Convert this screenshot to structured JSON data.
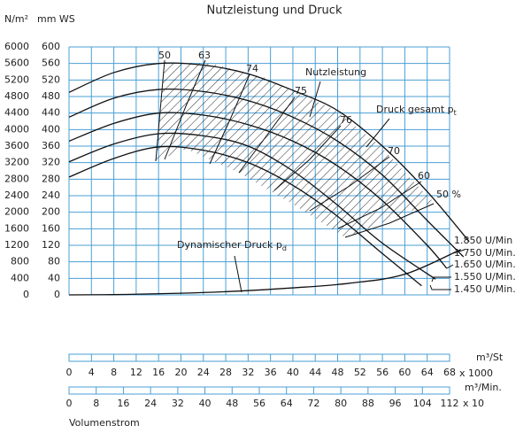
{
  "chart_data": {
    "type": "line",
    "title": "Nutzleistung und Druck",
    "y2_label": "N/m²",
    "y_label": "mm WS",
    "x_label": "Volumenstrom",
    "x_unit": "m³/St",
    "x_multiplier": "x 1000",
    "x2_unit": "m³/Min.",
    "x2_multiplier": "x 10",
    "annotations": {
      "power": "Nutzleistung",
      "total_pressure": "Druck gesamt p",
      "total_pressure_sub": "t"
    },
    "efficiency_labels": [
      "50",
      "63",
      "74",
      "75",
      "76",
      "70",
      "60",
      "50 %"
    ],
    "xlim": [
      0,
      68
    ],
    "xticks": [
      0,
      4,
      8,
      12,
      16,
      20,
      24,
      28,
      32,
      36,
      40,
      44,
      48,
      52,
      56,
      60,
      64,
      68
    ],
    "x2lim": [
      0,
      112
    ],
    "x2ticks": [
      0,
      8,
      16,
      24,
      32,
      40,
      48,
      56,
      64,
      72,
      80,
      88,
      96,
      104,
      112
    ],
    "ylim": [
      0,
      600
    ],
    "yticks": [
      0,
      40,
      80,
      120,
      160,
      200,
      240,
      280,
      320,
      360,
      400,
      440,
      480,
      520,
      560,
      600
    ],
    "y2lim": [
      0,
      6000
    ],
    "y2ticks": [
      0,
      400,
      800,
      1200,
      1600,
      2000,
      2400,
      2800,
      3200,
      3600,
      4000,
      4400,
      4800,
      5200,
      5600,
      6000
    ],
    "grid": true,
    "series": [
      {
        "name": "1.850 U/Min",
        "color": "#111111",
        "x": [
          0,
          8,
          16,
          24,
          32,
          40,
          48,
          56,
          64,
          71.5
        ],
        "values": [
          490,
          538,
          560,
          556,
          535,
          495,
          446,
          360,
          250,
          129
        ]
      },
      {
        "name": "1.750 U/Min.",
        "color": "#111111",
        "x": [
          0,
          8,
          16,
          24,
          32,
          40,
          48,
          56,
          64,
          70.5
        ],
        "values": [
          430,
          476,
          497,
          492,
          470,
          430,
          372,
          290,
          180,
          92
        ]
      },
      {
        "name": "1.650 U/Min.",
        "color": "#111111",
        "x": [
          0,
          8,
          16,
          24,
          32,
          40,
          48,
          56,
          64,
          67.5
        ],
        "values": [
          372,
          415,
          440,
          435,
          412,
          372,
          312,
          228,
          120,
          64
        ]
      },
      {
        "name": "1.550 U/Min.",
        "color": "#111111",
        "x": [
          0,
          8,
          16,
          24,
          32,
          40,
          48,
          56,
          65.5
        ],
        "values": [
          322,
          365,
          390,
          385,
          360,
          300,
          217,
          125,
          38
        ]
      },
      {
        "name": "1.450 U/Min.",
        "color": "#111111",
        "x": [
          0,
          8,
          16,
          24,
          32,
          40,
          48,
          56,
          63
        ],
        "values": [
          285,
          330,
          358,
          350,
          320,
          265,
          190,
          100,
          22
        ]
      },
      {
        "name": "Dynamischer Druck p",
        "name_sub": "d",
        "color": "#111111",
        "x": [
          0,
          10,
          20,
          30,
          40,
          50,
          60,
          70
        ],
        "values": [
          0,
          1,
          4,
          9,
          17,
          28,
          50,
          110
        ]
      }
    ]
  }
}
